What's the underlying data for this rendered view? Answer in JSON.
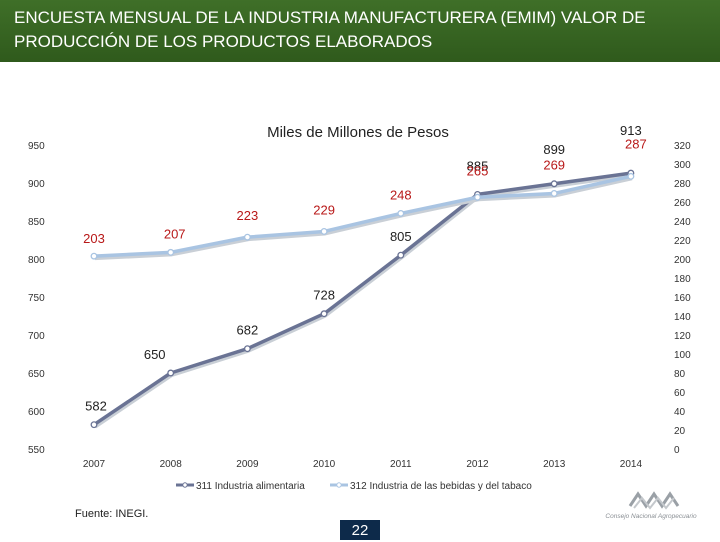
{
  "slide": {
    "title": "ENCUESTA MENSUAL DE LA INDUSTRIA  MANUFACTURERA (EMIM) VALOR DE PRODUCCIÓN DE LOS PRODUCTOS ELABORADOS",
    "source": "Fuente: INEGI.",
    "page_number": "22",
    "logo_text": "Consejo Nacional Agropecuario"
  },
  "colors": {
    "header": "#35621f",
    "series_311": "#6a7394",
    "series_312": "#a9c4e2"
  },
  "chart_data": {
    "type": "line",
    "title": "Miles de Millones de Pesos",
    "categories": [
      "2007",
      "2008",
      "2009",
      "2010",
      "2011",
      "2012",
      "2013",
      "2014"
    ],
    "y_left_ticks": [
      "950",
      "900",
      "850",
      "800",
      "750",
      "700",
      "650",
      "600",
      "550"
    ],
    "y_right_ticks": [
      "320",
      "300",
      "280",
      "260",
      "240",
      "220",
      "200",
      "180",
      "160",
      "140",
      "120",
      "100",
      "80",
      "60",
      "40",
      "20",
      "0"
    ],
    "ylim_left": [
      550,
      950
    ],
    "ylim_right": [
      0,
      320
    ],
    "series": [
      {
        "name": "311 Industria alimentaria",
        "axis": "left",
        "values": [
          582,
          650,
          682,
          728,
          805,
          885,
          899,
          913
        ],
        "labels": [
          "582",
          "650",
          "682",
          "728",
          "805",
          "885",
          "899",
          "913"
        ]
      },
      {
        "name": "312 Industria de las bebidas y del tabaco",
        "axis": "right",
        "values": [
          203,
          207,
          223,
          229,
          248,
          265,
          269,
          287
        ],
        "labels": [
          "203",
          "207",
          "223",
          "229",
          "248",
          "265",
          "269",
          "287"
        ]
      }
    ],
    "legend": "bottom"
  }
}
